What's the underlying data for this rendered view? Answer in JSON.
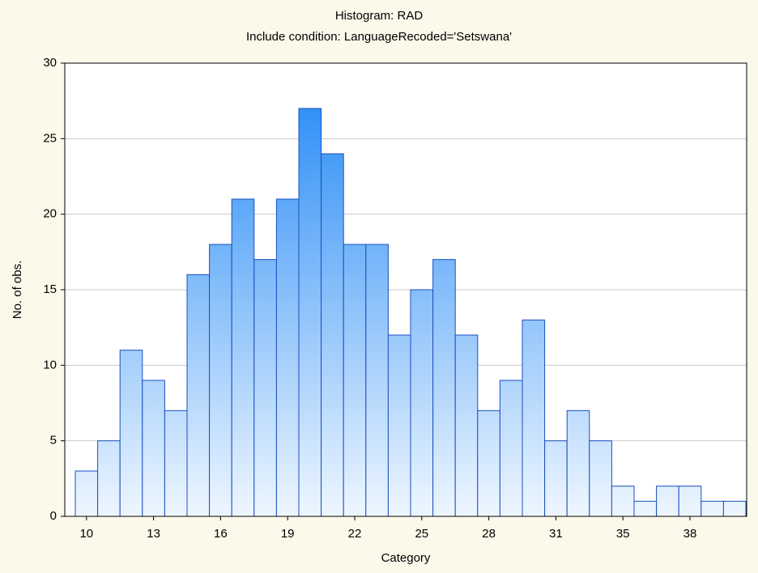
{
  "chart_data": {
    "type": "bar",
    "title": "Histogram: RAD",
    "subtitle": "Include condition: LanguageRecoded='Setswana'",
    "x_label": "Category",
    "y_label": "No. of obs.",
    "categories": [
      "10",
      null,
      null,
      "13",
      null,
      null,
      "16",
      null,
      null,
      "19",
      null,
      null,
      "22",
      null,
      null,
      "25",
      null,
      null,
      "28",
      null,
      null,
      "31",
      null,
      null,
      "35",
      null,
      null,
      "38",
      null,
      null
    ],
    "values": [
      3,
      5,
      11,
      9,
      7,
      16,
      18,
      21,
      17,
      21,
      27,
      24,
      18,
      18,
      12,
      15,
      17,
      12,
      7,
      9,
      13,
      5,
      7,
      5,
      2,
      1,
      2,
      2,
      1,
      1
    ],
    "color": "#1e86f5",
    "ylim": [
      0,
      30
    ],
    "yticks": [
      0,
      5,
      10,
      15,
      20,
      25,
      30
    ],
    "grid": true
  }
}
